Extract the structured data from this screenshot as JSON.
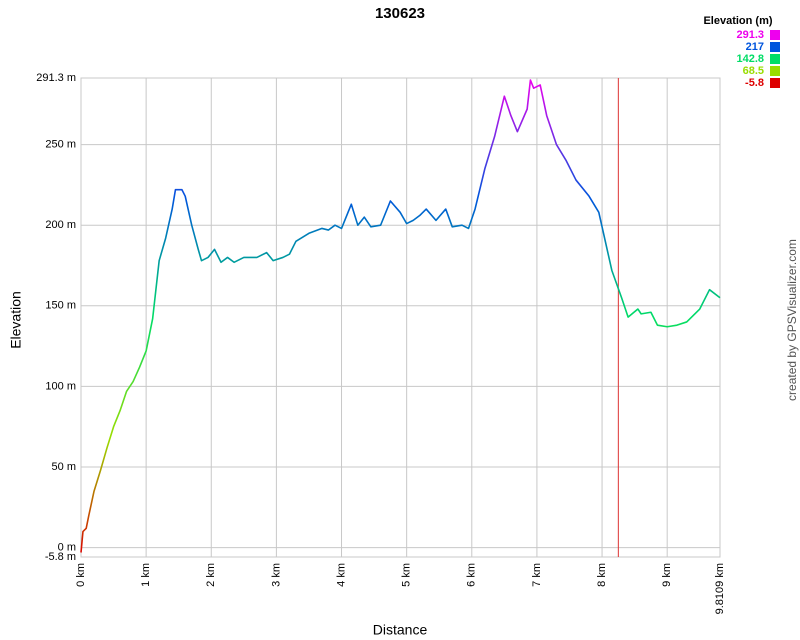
{
  "chart_data": {
    "type": "line",
    "title": "130623",
    "x_label": "Distance",
    "y_label": "Elevation",
    "credit": "created by GPSVisualizer.com",
    "legend_title": "Elevation (m)",
    "color_scale": [
      {
        "value": 291.3,
        "color": "#ee00ee"
      },
      {
        "value": 217.0,
        "color": "#0055dd"
      },
      {
        "value": 142.8,
        "color": "#00dd66"
      },
      {
        "value": 68.5,
        "color": "#99dd00"
      },
      {
        "value": -5.8,
        "color": "#dd0000"
      }
    ],
    "xlim": [
      0,
      9.8109
    ],
    "ylim": [
      -5.8,
      291.3
    ],
    "xticks": [
      {
        "value": 0,
        "label": "0 km"
      },
      {
        "value": 1,
        "label": "1 km"
      },
      {
        "value": 2,
        "label": "2 km"
      },
      {
        "value": 3,
        "label": "3 km"
      },
      {
        "value": 4,
        "label": "4 km"
      },
      {
        "value": 5,
        "label": "5 km"
      },
      {
        "value": 6,
        "label": "6 km"
      },
      {
        "value": 7,
        "label": "7 km"
      },
      {
        "value": 8,
        "label": "8 km"
      },
      {
        "value": 9,
        "label": "9 km"
      },
      {
        "value": 9.8109,
        "label": "9.8109 km"
      }
    ],
    "yticks": [
      {
        "value": -5.8,
        "label": "-5.8 m"
      },
      {
        "value": 0,
        "label": "0 m"
      },
      {
        "value": 50,
        "label": "50 m"
      },
      {
        "value": 100,
        "label": "100 m"
      },
      {
        "value": 150,
        "label": "150 m"
      },
      {
        "value": 200,
        "label": "200 m"
      },
      {
        "value": 250,
        "label": "250 m"
      },
      {
        "value": 291.3,
        "label": "291.3 m"
      }
    ],
    "grid": true,
    "marker_x": 8.25,
    "marker_color": "#dd3333",
    "x": [
      0,
      0.03,
      0.08,
      0.12,
      0.2,
      0.3,
      0.4,
      0.5,
      0.6,
      0.7,
      0.8,
      0.9,
      1.0,
      1.05,
      1.1,
      1.15,
      1.2,
      1.3,
      1.4,
      1.45,
      1.55,
      1.6,
      1.7,
      1.8,
      1.85,
      1.95,
      2.05,
      2.15,
      2.25,
      2.35,
      2.5,
      2.7,
      2.85,
      2.95,
      3.1,
      3.2,
      3.3,
      3.5,
      3.7,
      3.8,
      3.9,
      4.0,
      4.1,
      4.15,
      4.25,
      4.35,
      4.45,
      4.6,
      4.75,
      4.9,
      5.0,
      5.1,
      5.2,
      5.3,
      5.45,
      5.6,
      5.7,
      5.85,
      5.95,
      6.05,
      6.2,
      6.35,
      6.5,
      6.6,
      6.7,
      6.85,
      6.9,
      6.95,
      7.05,
      7.15,
      7.3,
      7.45,
      7.6,
      7.8,
      7.95,
      8.05,
      8.15,
      8.3,
      8.4,
      8.55,
      8.6,
      8.75,
      8.85,
      9.0,
      9.15,
      9.3,
      9.5,
      9.65,
      9.8109
    ],
    "series": [
      {
        "name": "Elevation",
        "values": [
          -3,
          10,
          12,
          20,
          35,
          48,
          62,
          75,
          85,
          97,
          103,
          112,
          122,
          132,
          142,
          160,
          178,
          192,
          210,
          222,
          222,
          218,
          200,
          185,
          178,
          180,
          185,
          177,
          180,
          177,
          180,
          180,
          183,
          178,
          180,
          182,
          190,
          195,
          198,
          197,
          200,
          198,
          208,
          213,
          200,
          205,
          199,
          200,
          215,
          208,
          201,
          203,
          206,
          210,
          203,
          210,
          199,
          200,
          198,
          210,
          235,
          255,
          280,
          268,
          258,
          272,
          290,
          285,
          287,
          268,
          250,
          240,
          228,
          218,
          208,
          190,
          172,
          155,
          143,
          148,
          145,
          146,
          138,
          137,
          138,
          140,
          148,
          160,
          155
        ]
      }
    ]
  }
}
